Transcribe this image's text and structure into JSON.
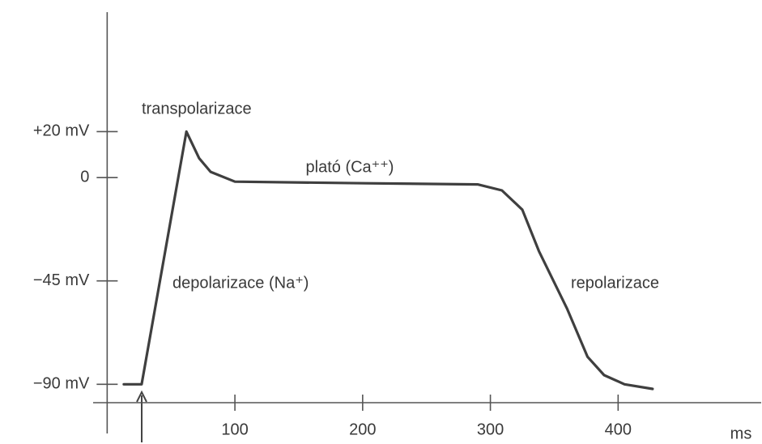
{
  "chart_data": {
    "type": "line",
    "x_label": "ms",
    "annotations": [
      "transpolarizace",
      "plató (Ca⁺⁺)",
      "depolarizace (Na⁺)",
      "repolarizace"
    ],
    "xlim": [
      -11,
      512
    ],
    "ylim": [
      -98,
      72
    ],
    "xticks": [
      100,
      200,
      300,
      400
    ],
    "yticks": [
      {
        "value": -90,
        "label": "−90 mV"
      },
      {
        "value": -45,
        "label": "−45 mV"
      },
      0,
      {
        "value": 20,
        "label": "+20 mV"
      }
    ],
    "x": [
      13,
      27,
      62,
      72,
      81,
      100,
      202,
      290,
      309,
      325,
      338,
      360,
      376,
      389,
      405,
      427
    ],
    "series": [
      {
        "color": "#3f3f3f",
        "values": [
          -90,
          -90,
          20,
          8.4,
          2.5,
          -1.8,
          -2.5,
          -3,
          -5.6,
          -14,
          -32,
          -57,
          -78,
          -86,
          -90,
          -92
        ]
      }
    ]
  }
}
